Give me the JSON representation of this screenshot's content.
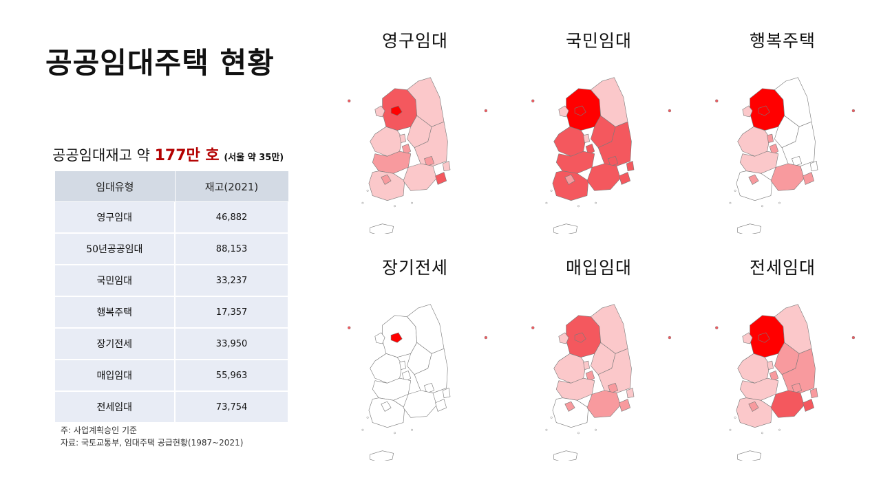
{
  "page": {
    "title": "공공임대주택 현황"
  },
  "stock": {
    "prefix": "공공임대재고 약",
    "highlight": "177만 호",
    "note": "(서울 약 35만)"
  },
  "table": {
    "headers": [
      "임대유형",
      "재고(2021)"
    ],
    "rows": [
      {
        "type": "영구임대",
        "stock": "46,882"
      },
      {
        "type": "50년공공임대",
        "stock": "88,153"
      },
      {
        "type": "국민임대",
        "stock": "33,237"
      },
      {
        "type": "행복주택",
        "stock": "17,357"
      },
      {
        "type": "장기전세",
        "stock": "33,950"
      },
      {
        "type": "매입임대",
        "stock": "55,963"
      },
      {
        "type": "전세임대",
        "stock": "73,754"
      }
    ]
  },
  "footnotes": {
    "line1": "주: 사업계획승인 기준",
    "line2": "자료: 국토교통부, 임대주택 공급현황(1987~2021)"
  },
  "colors": {
    "level0": "#ffffff",
    "level1": "#fbc8ca",
    "level2": "#f89a9e",
    "level3": "#f4585e",
    "level4": "#ff0000",
    "border": "#7a7a7a",
    "highlight_text": "#b30000"
  },
  "region_order": [
    "gyeonggi",
    "seoul",
    "incheon",
    "gangwon",
    "chungbuk",
    "chungnam",
    "daejeon",
    "sejong",
    "jeonbuk",
    "jeonnam",
    "gwangju",
    "gyeongbuk",
    "daegu",
    "gyeongnam",
    "ulsan",
    "busan",
    "jeju"
  ],
  "maps": [
    {
      "title": "영구임대",
      "levels": {
        "gyeonggi": 3,
        "seoul": 4,
        "incheon": 1,
        "gangwon": 1,
        "chungbuk": 1,
        "chungnam": 1,
        "daejeon": 2,
        "sejong": 1,
        "jeonbuk": 2,
        "jeonnam": 1,
        "gwangju": 2,
        "gyeongbuk": 1,
        "daegu": 2,
        "gyeongnam": 1,
        "ulsan": 1,
        "busan": 3,
        "jeju": 0
      }
    },
    {
      "title": "국민임대",
      "levels": {
        "gyeonggi": 4,
        "seoul": 4,
        "incheon": 1,
        "gangwon": 1,
        "chungbuk": 3,
        "chungnam": 3,
        "daejeon": 3,
        "sejong": 1,
        "jeonbuk": 3,
        "jeonnam": 3,
        "gwangju": 2,
        "gyeongbuk": 3,
        "daegu": 3,
        "gyeongnam": 3,
        "ulsan": 3,
        "busan": 3,
        "jeju": 0
      }
    },
    {
      "title": "행복주택",
      "levels": {
        "gyeonggi": 4,
        "seoul": 4,
        "incheon": 1,
        "gangwon": 0,
        "chungbuk": 0,
        "chungnam": 1,
        "daejeon": 2,
        "sejong": 2,
        "jeonbuk": 1,
        "jeonnam": 0,
        "gwangju": 2,
        "gyeongbuk": 0,
        "daegu": 0,
        "gyeongnam": 2,
        "ulsan": 0,
        "busan": 2,
        "jeju": 0
      }
    },
    {
      "title": "장기전세",
      "levels": {
        "gyeonggi": 0,
        "seoul": 4,
        "incheon": 0,
        "gangwon": 0,
        "chungbuk": 0,
        "chungnam": 0,
        "daejeon": 0,
        "sejong": 0,
        "jeonbuk": 0,
        "jeonnam": 0,
        "gwangju": 0,
        "gyeongbuk": 0,
        "daegu": 0,
        "gyeongnam": 0,
        "ulsan": 0,
        "busan": 0,
        "jeju": 0
      }
    },
    {
      "title": "매입임대",
      "levels": {
        "gyeonggi": 3,
        "seoul": 3,
        "incheon": 1,
        "gangwon": 1,
        "chungbuk": 1,
        "chungnam": 1,
        "daejeon": 2,
        "sejong": 1,
        "jeonbuk": 1,
        "jeonnam": 0,
        "gwangju": 2,
        "gyeongbuk": 1,
        "daegu": 2,
        "gyeongnam": 2,
        "ulsan": 1,
        "busan": 2,
        "jeju": 0
      }
    },
    {
      "title": "전세임대",
      "levels": {
        "gyeonggi": 4,
        "seoul": 4,
        "incheon": 1,
        "gangwon": 1,
        "chungbuk": 2,
        "chungnam": 1,
        "daejeon": 2,
        "sejong": 1,
        "jeonbuk": 1,
        "jeonnam": 1,
        "gwangju": 2,
        "gyeongbuk": 2,
        "daegu": 2,
        "gyeongnam": 3,
        "ulsan": 2,
        "busan": 3,
        "jeju": 0
      }
    }
  ]
}
